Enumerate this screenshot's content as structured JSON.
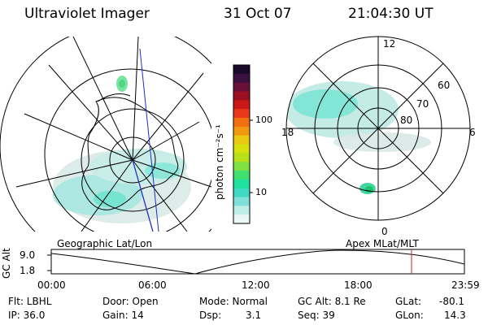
{
  "header": {
    "title": "Ultraviolet Imager",
    "date": "31 Oct 07",
    "time": "21:04:30 UT"
  },
  "colorbar": {
    "label": "photon cm⁻²s⁻¹",
    "ticks": [
      "100",
      "10"
    ],
    "colors": [
      "#1a0a2a",
      "#3a1040",
      "#6a1038",
      "#9a1020",
      "#c81818",
      "#e83818",
      "#f07010",
      "#f09810",
      "#e8c810",
      "#d8e010",
      "#b8e018",
      "#80e040",
      "#40e070",
      "#20e0a0",
      "#40d8c0",
      "#80e0d8",
      "#c0ece8",
      "#e8f6f4"
    ]
  },
  "polar_plot": {
    "labels": {
      "top": "12",
      "bottom": "0",
      "left": "18",
      "right": "6"
    },
    "rings": [
      "60",
      "70",
      "80"
    ]
  },
  "timeline": {
    "left_title": "Geographic Lat/Lon",
    "right_title": "Apex MLat/MLT",
    "y_label": "GC Alt",
    "y_ticks": [
      "9.0",
      "1.8"
    ],
    "x_ticks": [
      "00:00",
      "06:00",
      "12:00",
      "18:00",
      "23:59"
    ]
  },
  "info": {
    "row1": {
      "flt": "Flt: LBHL",
      "door": "Door: Open",
      "mode": "Mode: Normal",
      "gcalt": "GC Alt: 8.1 Re",
      "glat_label": "GLat:",
      "glat_val": "-80.1"
    },
    "row2": {
      "ip": "IP: 36.0",
      "gain": "Gain: 14",
      "dsp_label": "Dsp:",
      "dsp_val": "3.1",
      "seq": "Seq: 39",
      "glon_label": "GLon:",
      "glon_val": "14.3"
    }
  }
}
